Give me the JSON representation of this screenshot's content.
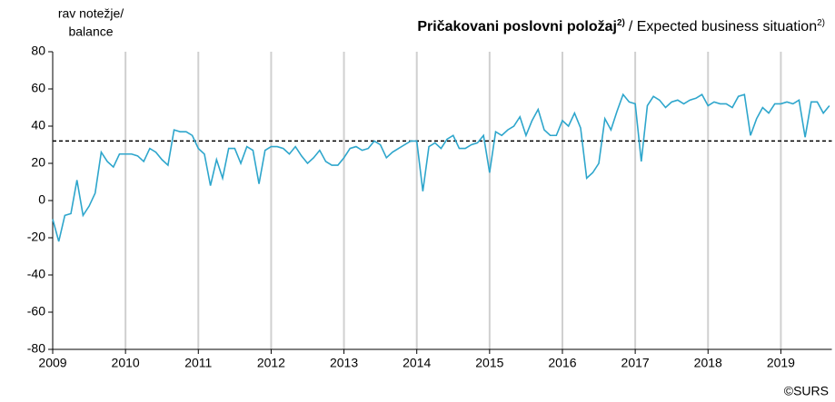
{
  "chart_data": {
    "type": "line",
    "title": "Pričakovani poslovni položaj",
    "title_note": "2)",
    "subtitle": "/ Expected business situation",
    "subtitle_note": "2)",
    "y_label": [
      "rav notežje/",
      "balance"
    ],
    "source": "©SURS",
    "x": [
      2009,
      2009.0833,
      2009.1667,
      2009.25,
      2009.3333,
      2009.4167,
      2009.5,
      2009.5833,
      2009.6667,
      2009.75,
      2009.8333,
      2009.9167,
      2010,
      2010.0833,
      2010.1667,
      2010.25,
      2010.3333,
      2010.4167,
      2010.5,
      2010.5833,
      2010.6667,
      2010.75,
      2010.8333,
      2010.9167,
      2011,
      2011.0833,
      2011.1667,
      2011.25,
      2011.3333,
      2011.4167,
      2011.5,
      2011.5833,
      2011.6667,
      2011.75,
      2011.8333,
      2011.9167,
      2012,
      2012.0833,
      2012.1667,
      2012.25,
      2012.3333,
      2012.4167,
      2012.5,
      2012.5833,
      2012.6667,
      2012.75,
      2012.8333,
      2012.9167,
      2013,
      2013.0833,
      2013.1667,
      2013.25,
      2013.3333,
      2013.4167,
      2013.5,
      2013.5833,
      2013.6667,
      2013.75,
      2013.8333,
      2013.9167,
      2014,
      2014.0833,
      2014.1667,
      2014.25,
      2014.3333,
      2014.4167,
      2014.5,
      2014.5833,
      2014.6667,
      2014.75,
      2014.8333,
      2014.9167,
      2015,
      2015.0833,
      2015.1667,
      2015.25,
      2015.3333,
      2015.4167,
      2015.5,
      2015.5833,
      2015.6667,
      2015.75,
      2015.8333,
      2015.9167,
      2016,
      2016.0833,
      2016.1667,
      2016.25,
      2016.3333,
      2016.4167,
      2016.5,
      2016.5833,
      2016.6667,
      2016.75,
      2016.8333,
      2016.9167,
      2017,
      2017.0833,
      2017.1667,
      2017.25,
      2017.3333,
      2017.4167,
      2017.5,
      2017.5833,
      2017.6667,
      2017.75,
      2017.8333,
      2017.9167,
      2018,
      2018.0833,
      2018.1667,
      2018.25,
      2018.3333,
      2018.4167,
      2018.5,
      2018.5833,
      2018.6667,
      2018.75,
      2018.8333,
      2018.9167,
      2019,
      2019.0833,
      2019.1667,
      2019.25,
      2019.3333,
      2019.4167,
      2019.5,
      2019.5833,
      2019.6667
    ],
    "series": [
      {
        "name": "Expected business situation",
        "color": "#2ea6cc",
        "values": [
          -10,
          -22,
          -8,
          -7,
          11,
          -8,
          -3,
          4,
          26,
          21,
          18,
          25,
          25,
          25,
          24,
          21,
          28,
          26,
          22,
          19,
          38,
          37,
          37,
          35,
          28,
          25,
          8,
          22,
          12,
          28,
          28,
          20,
          29,
          27,
          9,
          27,
          29,
          29,
          28,
          25,
          29,
          24,
          20,
          23,
          27,
          21,
          19,
          19,
          23,
          28,
          29,
          27,
          28,
          32,
          30,
          23,
          26,
          28,
          30,
          32,
          32,
          5,
          29,
          31,
          28,
          33,
          35,
          28,
          28,
          30,
          31,
          35,
          15,
          37,
          35,
          38,
          40,
          45,
          35,
          43,
          49,
          38,
          35,
          35,
          43,
          40,
          47,
          39,
          12,
          15,
          20,
          44,
          38,
          48,
          57,
          53,
          52,
          21,
          51,
          56,
          54,
          50,
          53,
          54,
          52,
          54,
          55,
          57,
          51,
          53,
          52,
          52,
          50,
          56,
          57,
          35,
          44,
          50,
          47,
          52,
          52,
          53,
          52,
          54,
          34,
          53,
          53,
          47,
          51
        ]
      }
    ],
    "reference_line": 32,
    "xlim": [
      2009,
      2019.7
    ],
    "xticks": [
      2009,
      2010,
      2011,
      2012,
      2013,
      2014,
      2015,
      2016,
      2017,
      2018,
      2019
    ],
    "ylim": [
      -80,
      80
    ],
    "yticks": [
      -80,
      -60,
      -40,
      -20,
      0,
      20,
      40,
      60,
      80
    ],
    "grid": "x"
  }
}
